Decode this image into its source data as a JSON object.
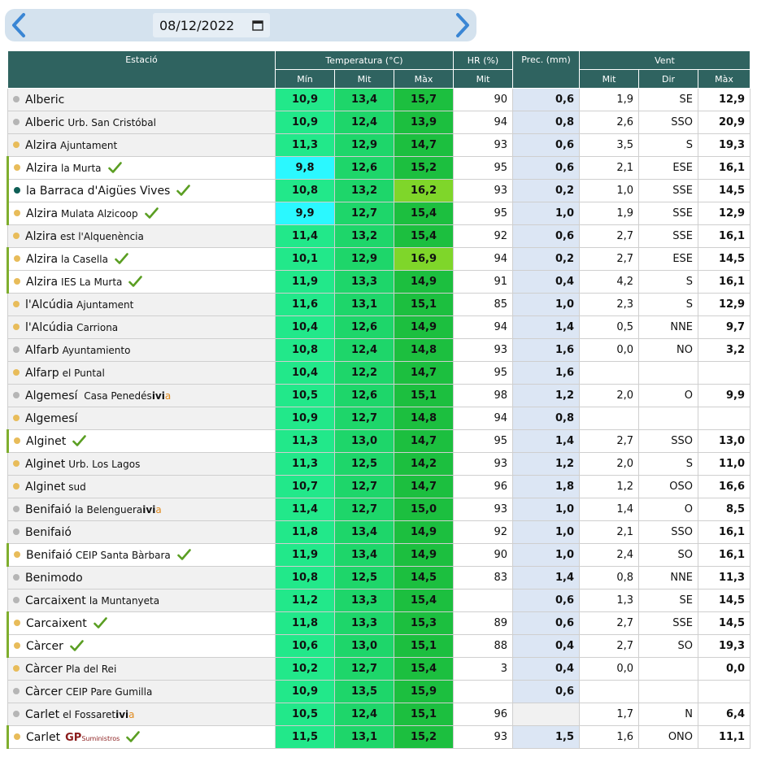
{
  "date_picker": {
    "value": "08/12/2022"
  },
  "header": {
    "estacio": "Estació",
    "temperatura": "Temperatura (°C)",
    "hr": "HR (%)",
    "prec": "Prec. (mm)",
    "vent": "Vent",
    "temp_min": "Mín",
    "temp_mit": "Mit",
    "temp_max": "Màx",
    "hr_mit": "Mit",
    "vent_mit": "Mit",
    "vent_dir": "Dir",
    "vent_max": "Màx"
  },
  "colors": {
    "header_bg": "#2f6360",
    "temp_min": "#22e88a",
    "temp_mit": "#1ed66a",
    "temp_max": "#1cbf3f",
    "cold": "#2bf8ff",
    "warm": "#7fd62a",
    "prec_bg": "#dce6f4"
  },
  "rows": [
    {
      "name": "Alberic",
      "sub": "",
      "dot": "gray",
      "bg": "gray",
      "check": false,
      "logo": "",
      "min": "10,9",
      "mit": "13,4",
      "max": "15,7",
      "hr": "90",
      "prec": "0,6",
      "wmit": "1,9",
      "wdir": "SE",
      "wmax": "12,9"
    },
    {
      "name": "Alberic",
      "sub": "Urb. San Cristóbal",
      "dot": "gray",
      "bg": "gray",
      "check": false,
      "logo": "",
      "min": "10,9",
      "mit": "12,4",
      "max": "13,9",
      "hr": "94",
      "prec": "0,8",
      "wmit": "2,6",
      "wdir": "SSO",
      "wmax": "20,9"
    },
    {
      "name": "Alzira",
      "sub": "Ajuntament",
      "dot": "yellow",
      "bg": "gray",
      "check": false,
      "logo": "",
      "min": "11,3",
      "mit": "12,9",
      "max": "14,7",
      "hr": "93",
      "prec": "0,6",
      "wmit": "3,5",
      "wdir": "S",
      "wmax": "19,3"
    },
    {
      "name": "Alzira",
      "sub": "la Murta",
      "dot": "yellow",
      "bg": "white",
      "check": true,
      "logo": "",
      "min": "9,8",
      "mit": "12,6",
      "max": "15,2",
      "hr": "95",
      "prec": "0,6",
      "wmit": "2,1",
      "wdir": "ESE",
      "wmax": "16,1",
      "min_hl": "cyan"
    },
    {
      "name": "la Barraca d'Aigües Vives",
      "sub": "",
      "dot": "teal",
      "bg": "white",
      "check": true,
      "logo": "",
      "min": "10,8",
      "mit": "13,2",
      "max": "16,2",
      "hr": "93",
      "prec": "0,2",
      "wmit": "1,0",
      "wdir": "SSE",
      "wmax": "14,5",
      "max_hl": "lime"
    },
    {
      "name": "Alzira",
      "sub": "Mulata Alzicoop",
      "dot": "yellow",
      "bg": "white",
      "check": true,
      "logo": "",
      "min": "9,9",
      "mit": "12,7",
      "max": "15,4",
      "hr": "95",
      "prec": "1,0",
      "wmit": "1,9",
      "wdir": "SSE",
      "wmax": "12,9",
      "min_hl": "cyan"
    },
    {
      "name": "Alzira",
      "sub": "est l'Alquenència",
      "dot": "yellow",
      "bg": "gray",
      "check": false,
      "logo": "",
      "min": "11,4",
      "mit": "13,2",
      "max": "15,4",
      "hr": "92",
      "prec": "0,6",
      "wmit": "2,7",
      "wdir": "SSE",
      "wmax": "16,1"
    },
    {
      "name": "Alzira",
      "sub": "la Casella",
      "dot": "yellow",
      "bg": "white",
      "check": true,
      "logo": "",
      "min": "10,1",
      "mit": "12,9",
      "max": "16,9",
      "hr": "94",
      "prec": "0,2",
      "wmit": "2,7",
      "wdir": "ESE",
      "wmax": "14,5",
      "max_hl": "lime"
    },
    {
      "name": "Alzira",
      "sub": "IES La Murta",
      "dot": "yellow",
      "bg": "white",
      "check": true,
      "logo": "",
      "min": "11,9",
      "mit": "13,3",
      "max": "14,9",
      "hr": "91",
      "prec": "0,4",
      "wmit": "4,2",
      "wdir": "S",
      "wmax": "16,1"
    },
    {
      "name": "l'Alcúdia",
      "sub": "Ajuntament",
      "dot": "yellow",
      "bg": "gray",
      "check": false,
      "logo": "",
      "min": "11,6",
      "mit": "13,1",
      "max": "15,1",
      "hr": "85",
      "prec": "1,0",
      "wmit": "2,3",
      "wdir": "S",
      "wmax": "12,9"
    },
    {
      "name": "l'Alcúdia",
      "sub": "Carriona",
      "dot": "yellow",
      "bg": "gray",
      "check": false,
      "logo": "",
      "min": "10,4",
      "mit": "12,6",
      "max": "14,9",
      "hr": "94",
      "prec": "1,4",
      "wmit": "0,5",
      "wdir": "NNE",
      "wmax": "9,7"
    },
    {
      "name": "Alfarb",
      "sub": "Ayuntamiento",
      "dot": "gray",
      "bg": "gray",
      "check": false,
      "logo": "",
      "min": "10,8",
      "mit": "12,4",
      "max": "14,8",
      "hr": "93",
      "prec": "1,6",
      "wmit": "0,0",
      "wdir": "NO",
      "wmax": "3,2"
    },
    {
      "name": "Alfarp",
      "sub": "el Puntal",
      "dot": "yellow",
      "bg": "gray",
      "check": false,
      "logo": "",
      "min": "10,4",
      "mit": "12,2",
      "max": "14,7",
      "hr": "95",
      "prec": "1,6",
      "wmit": "",
      "wdir": "",
      "wmax": ""
    },
    {
      "name": "Algemesí",
      "sub": " Casa Penedés",
      "dot": "gray",
      "bg": "gray",
      "check": false,
      "logo": "ivia",
      "min": "10,5",
      "mit": "12,6",
      "max": "15,1",
      "hr": "98",
      "prec": "1,2",
      "wmit": "2,0",
      "wdir": "O",
      "wmax": "9,9"
    },
    {
      "name": "Algemesí",
      "sub": "",
      "dot": "yellow",
      "bg": "gray",
      "check": false,
      "logo": "",
      "min": "10,9",
      "mit": "12,7",
      "max": "14,8",
      "hr": "94",
      "prec": "0,8",
      "wmit": "",
      "wdir": "",
      "wmax": ""
    },
    {
      "name": "Alginet",
      "sub": "",
      "dot": "yellow",
      "bg": "white",
      "check": true,
      "logo": "",
      "min": "11,3",
      "mit": "13,0",
      "max": "14,7",
      "hr": "95",
      "prec": "1,4",
      "wmit": "2,7",
      "wdir": "SSO",
      "wmax": "13,0"
    },
    {
      "name": "Alginet",
      "sub": "Urb. Los Lagos",
      "dot": "yellow",
      "bg": "gray",
      "check": false,
      "logo": "",
      "min": "11,3",
      "mit": "12,5",
      "max": "14,2",
      "hr": "93",
      "prec": "1,2",
      "wmit": "2,0",
      "wdir": "S",
      "wmax": "11,0"
    },
    {
      "name": "Alginet",
      "sub": "sud",
      "dot": "yellow",
      "bg": "gray",
      "check": false,
      "logo": "",
      "min": "10,7",
      "mit": "12,7",
      "max": "14,7",
      "hr": "96",
      "prec": "1,8",
      "wmit": "1,2",
      "wdir": "OSO",
      "wmax": "16,6"
    },
    {
      "name": "Benifaió",
      "sub": "la Belenguera",
      "dot": "gray",
      "bg": "gray",
      "check": false,
      "logo": "ivia",
      "min": "11,4",
      "mit": "12,7",
      "max": "15,0",
      "hr": "93",
      "prec": "1,0",
      "wmit": "1,4",
      "wdir": "O",
      "wmax": "8,5"
    },
    {
      "name": "Benifaió",
      "sub": "",
      "dot": "gray",
      "bg": "gray",
      "check": false,
      "logo": "",
      "min": "11,8",
      "mit": "13,4",
      "max": "14,9",
      "hr": "92",
      "prec": "1,0",
      "wmit": "2,1",
      "wdir": "SSO",
      "wmax": "16,1"
    },
    {
      "name": "Benifaió",
      "sub": "CEIP Santa Bàrbara",
      "dot": "yellow",
      "bg": "white",
      "check": true,
      "logo": "",
      "min": "11,9",
      "mit": "13,4",
      "max": "14,9",
      "hr": "90",
      "prec": "1,0",
      "wmit": "2,4",
      "wdir": "SO",
      "wmax": "16,1"
    },
    {
      "name": "Benimodo",
      "sub": "",
      "dot": "gray",
      "bg": "gray",
      "check": false,
      "logo": "",
      "min": "10,8",
      "mit": "12,5",
      "max": "14,5",
      "hr": "83",
      "prec": "1,4",
      "wmit": "0,8",
      "wdir": "NNE",
      "wmax": "11,3"
    },
    {
      "name": "Carcaixent",
      "sub": "la Muntanyeta",
      "dot": "gray",
      "bg": "gray",
      "check": false,
      "logo": "",
      "min": "11,2",
      "mit": "13,3",
      "max": "15,4",
      "hr": "",
      "prec": "0,6",
      "wmit": "1,3",
      "wdir": "SE",
      "wmax": "14,5"
    },
    {
      "name": "Carcaixent",
      "sub": "",
      "dot": "yellow",
      "bg": "white",
      "check": true,
      "logo": "",
      "min": "11,8",
      "mit": "13,3",
      "max": "15,3",
      "hr": "89",
      "prec": "0,6",
      "wmit": "2,7",
      "wdir": "SSE",
      "wmax": "14,5"
    },
    {
      "name": "Càrcer",
      "sub": "",
      "dot": "yellow",
      "bg": "white",
      "check": true,
      "logo": "",
      "min": "10,6",
      "mit": "13,0",
      "max": "15,1",
      "hr": "88",
      "prec": "0,4",
      "wmit": "2,7",
      "wdir": "SO",
      "wmax": "19,3"
    },
    {
      "name": "Càrcer",
      "sub": "Pla del Rei",
      "dot": "yellow",
      "bg": "gray",
      "check": false,
      "logo": "",
      "min": "10,2",
      "mit": "12,7",
      "max": "15,4",
      "hr": "3",
      "prec": "0,4",
      "wmit": "0,0",
      "wdir": "",
      "wmax": "0,0"
    },
    {
      "name": "Càrcer",
      "sub": "CEIP Pare Gumilla",
      "dot": "gray",
      "bg": "gray",
      "check": false,
      "logo": "",
      "min": "10,9",
      "mit": "13,5",
      "max": "15,9",
      "hr": "",
      "prec": "0,6",
      "wmit": "",
      "wdir": "",
      "wmax": ""
    },
    {
      "name": "Carlet",
      "sub": "el Fossaret",
      "dot": "gray",
      "bg": "gray",
      "check": false,
      "logo": "ivia",
      "min": "10,5",
      "mit": "12,4",
      "max": "15,1",
      "hr": "96",
      "prec": "",
      "wmit": "1,7",
      "wdir": "N",
      "wmax": "6,4"
    },
    {
      "name": "Carlet",
      "sub": "",
      "dot": "yellow",
      "bg": "white",
      "check": true,
      "logo": "gp",
      "min": "11,5",
      "mit": "13,1",
      "max": "15,2",
      "hr": "93",
      "prec": "1,5",
      "wmit": "1,6",
      "wdir": "ONO",
      "wmax": "11,1"
    }
  ],
  "logos": {
    "ivia_main": "ivi",
    "ivia_accent": "a",
    "gp_main": "GP",
    "gp_small": "Suministros"
  }
}
